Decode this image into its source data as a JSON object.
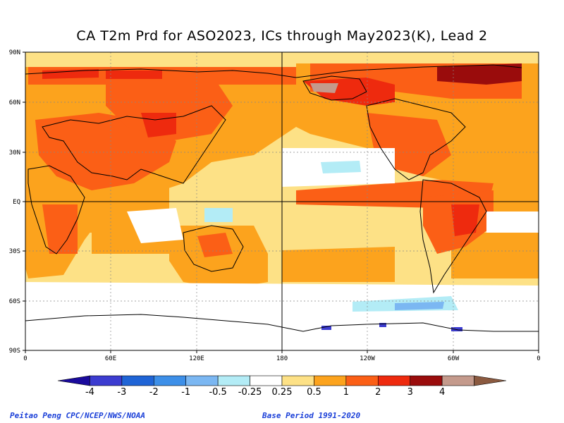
{
  "title": "CA T2m Prd for ASO2023, ICs through May2023(K), Lead 2",
  "lat_labels": [
    "90N",
    "60N",
    "30N",
    "EQ",
    "30S",
    "60S",
    "90S"
  ],
  "lon_labels": [
    "0",
    "60E",
    "120E",
    "180",
    "120W",
    "60W",
    "0"
  ],
  "colorbar": {
    "bins": [
      {
        "color": "#1a0a9c"
      },
      {
        "color": "#3c3cd0"
      },
      {
        "color": "#1f64d6"
      },
      {
        "color": "#3d8fe8"
      },
      {
        "color": "#7bb7f2"
      },
      {
        "color": "#b3ecf6"
      },
      {
        "color": "#ffffff"
      },
      {
        "color": "#fde186"
      },
      {
        "color": "#fca31d"
      },
      {
        "color": "#fb5f16"
      },
      {
        "color": "#ee2a0e"
      },
      {
        "color": "#9a0c0c"
      },
      {
        "color": "#c49a8c"
      },
      {
        "color": "#8b5a40"
      }
    ],
    "labels": [
      "-4",
      "-3",
      "-2",
      "-1",
      "-0.5",
      "-0.25",
      "0.25",
      "0.5",
      "1",
      "2",
      "3",
      "4"
    ]
  },
  "credit_left": "Peitao Peng CPC/NCEP/NWS/NOAA",
  "credit_right": "Base Period 1991-2020"
}
